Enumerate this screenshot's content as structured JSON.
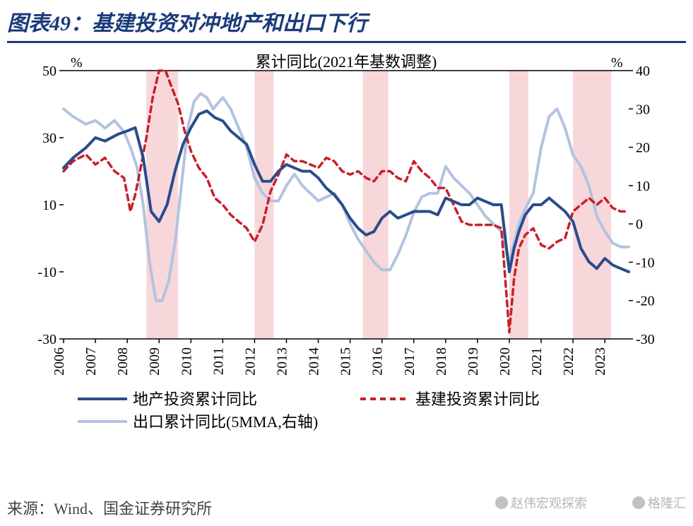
{
  "title": "图表49：基建投资对冲地产和出口下行",
  "subtitle": "累计同比(2021年基数调整)",
  "source": "来源：Wind、国金证券研究所",
  "watermark1": "赵伟宏观探索",
  "watermark2": "格隆汇",
  "chart": {
    "type": "line",
    "background_color": "#ffffff",
    "plot_border_color": "#000000",
    "highlight_band_color": "#f7d7da",
    "grid": false,
    "axis_font_size": 20,
    "title_font_size": 22,
    "legend_font_size": 22,
    "y_left": {
      "unit": "%",
      "min": -30,
      "max": 50,
      "step": 20,
      "ticks": [
        -30,
        -10,
        10,
        30,
        50
      ]
    },
    "y_right": {
      "unit": "%",
      "min": -30,
      "max": 40,
      "step": 10,
      "ticks": [
        -30,
        -20,
        -10,
        0,
        10,
        20,
        30,
        40
      ]
    },
    "x": {
      "labels": [
        "2006",
        "2007",
        "2008",
        "2009",
        "2010",
        "2011",
        "2012",
        "2013",
        "2014",
        "2015",
        "2016",
        "2017",
        "2018",
        "2019",
        "2020",
        "2021",
        "2022",
        "2023"
      ],
      "rotate": 90
    },
    "highlight_bands": [
      {
        "start_idx": 2.6,
        "end_idx": 3.6
      },
      {
        "start_idx": 6.0,
        "end_idx": 6.6
      },
      {
        "start_idx": 9.4,
        "end_idx": 10.2
      },
      {
        "start_idx": 14.0,
        "end_idx": 14.6
      },
      {
        "start_idx": 16.0,
        "end_idx": 17.2
      }
    ],
    "series": [
      {
        "name": "地产投资累计同比",
        "axis": "left",
        "color": "#2b4b8d",
        "width": 4,
        "dash": "",
        "data": [
          [
            0.0,
            21
          ],
          [
            0.3,
            24
          ],
          [
            0.7,
            27
          ],
          [
            1.0,
            30
          ],
          [
            1.3,
            29
          ],
          [
            1.7,
            31
          ],
          [
            2.0,
            32
          ],
          [
            2.25,
            33
          ],
          [
            2.5,
            24
          ],
          [
            2.75,
            8
          ],
          [
            3.0,
            5
          ],
          [
            3.25,
            10
          ],
          [
            3.5,
            20
          ],
          [
            3.75,
            28
          ],
          [
            4.0,
            33
          ],
          [
            4.25,
            37
          ],
          [
            4.5,
            38
          ],
          [
            4.75,
            36
          ],
          [
            5.0,
            35
          ],
          [
            5.25,
            32
          ],
          [
            5.5,
            30
          ],
          [
            5.75,
            28
          ],
          [
            6.0,
            22
          ],
          [
            6.25,
            17
          ],
          [
            6.5,
            17
          ],
          [
            6.75,
            20
          ],
          [
            7.0,
            22
          ],
          [
            7.25,
            21
          ],
          [
            7.5,
            20
          ],
          [
            7.75,
            20
          ],
          [
            8.0,
            18
          ],
          [
            8.25,
            15
          ],
          [
            8.5,
            13
          ],
          [
            8.75,
            10
          ],
          [
            9.0,
            6
          ],
          [
            9.25,
            3
          ],
          [
            9.5,
            1
          ],
          [
            9.75,
            2
          ],
          [
            10.0,
            6
          ],
          [
            10.25,
            8
          ],
          [
            10.5,
            6
          ],
          [
            10.75,
            7
          ],
          [
            11.0,
            8
          ],
          [
            11.25,
            8
          ],
          [
            11.5,
            8
          ],
          [
            11.75,
            7
          ],
          [
            12.0,
            12
          ],
          [
            12.25,
            11
          ],
          [
            12.5,
            10
          ],
          [
            12.75,
            10
          ],
          [
            13.0,
            12
          ],
          [
            13.25,
            11
          ],
          [
            13.5,
            10
          ],
          [
            13.75,
            10
          ],
          [
            14.0,
            -10
          ],
          [
            14.15,
            -3
          ],
          [
            14.3,
            2
          ],
          [
            14.5,
            7
          ],
          [
            14.75,
            10
          ],
          [
            15.0,
            10
          ],
          [
            15.25,
            12
          ],
          [
            15.5,
            10
          ],
          [
            15.75,
            8
          ],
          [
            16.0,
            5
          ],
          [
            16.25,
            -3
          ],
          [
            16.5,
            -7
          ],
          [
            16.75,
            -9
          ],
          [
            17.0,
            -6
          ],
          [
            17.25,
            -8
          ],
          [
            17.5,
            -9
          ],
          [
            17.75,
            -10
          ]
        ]
      },
      {
        "name": "基建投资累计同比",
        "axis": "left",
        "color": "#c8202a",
        "width": 3.5,
        "dash": "8,6",
        "data": [
          [
            0.0,
            20
          ],
          [
            0.3,
            23
          ],
          [
            0.7,
            25
          ],
          [
            1.0,
            22
          ],
          [
            1.3,
            24
          ],
          [
            1.6,
            20
          ],
          [
            1.9,
            18
          ],
          [
            2.1,
            8
          ],
          [
            2.25,
            13
          ],
          [
            2.4,
            20
          ],
          [
            2.6,
            30
          ],
          [
            2.8,
            42
          ],
          [
            3.0,
            50
          ],
          [
            3.2,
            50
          ],
          [
            3.4,
            45
          ],
          [
            3.6,
            40
          ],
          [
            3.8,
            32
          ],
          [
            4.0,
            26
          ],
          [
            4.25,
            21
          ],
          [
            4.5,
            18
          ],
          [
            4.75,
            12
          ],
          [
            5.0,
            10
          ],
          [
            5.25,
            7
          ],
          [
            5.5,
            5
          ],
          [
            5.75,
            3
          ],
          [
            6.0,
            -1
          ],
          [
            6.25,
            4
          ],
          [
            6.5,
            14
          ],
          [
            6.75,
            19
          ],
          [
            7.0,
            25
          ],
          [
            7.25,
            23
          ],
          [
            7.5,
            23
          ],
          [
            7.75,
            22
          ],
          [
            8.0,
            21
          ],
          [
            8.25,
            24
          ],
          [
            8.5,
            23
          ],
          [
            8.75,
            20
          ],
          [
            9.0,
            19
          ],
          [
            9.25,
            20
          ],
          [
            9.5,
            18
          ],
          [
            9.75,
            17
          ],
          [
            10.0,
            20
          ],
          [
            10.25,
            20
          ],
          [
            10.5,
            18
          ],
          [
            10.75,
            17
          ],
          [
            11.0,
            23
          ],
          [
            11.25,
            20
          ],
          [
            11.5,
            18
          ],
          [
            11.75,
            15
          ],
          [
            12.0,
            15
          ],
          [
            12.25,
            10
          ],
          [
            12.5,
            5
          ],
          [
            12.75,
            4
          ],
          [
            13.0,
            4
          ],
          [
            13.25,
            4
          ],
          [
            13.5,
            4
          ],
          [
            13.75,
            3
          ],
          [
            14.0,
            -28
          ],
          [
            14.15,
            -12
          ],
          [
            14.3,
            -3
          ],
          [
            14.5,
            1
          ],
          [
            14.75,
            3
          ],
          [
            15.0,
            -2
          ],
          [
            15.25,
            -3
          ],
          [
            15.5,
            -1
          ],
          [
            15.75,
            0
          ],
          [
            16.0,
            8
          ],
          [
            16.25,
            10
          ],
          [
            16.5,
            12
          ],
          [
            16.75,
            10
          ],
          [
            17.0,
            12
          ],
          [
            17.25,
            9
          ],
          [
            17.5,
            8
          ],
          [
            17.75,
            8
          ]
        ]
      },
      {
        "name": "出口累计同比(5MMA,右轴)",
        "axis": "right",
        "color": "#b3c3e0",
        "width": 4,
        "dash": "",
        "data": [
          [
            0.0,
            30
          ],
          [
            0.3,
            28
          ],
          [
            0.7,
            26
          ],
          [
            1.0,
            27
          ],
          [
            1.3,
            25
          ],
          [
            1.6,
            27
          ],
          [
            1.9,
            24
          ],
          [
            2.1,
            20
          ],
          [
            2.3,
            15
          ],
          [
            2.5,
            5
          ],
          [
            2.7,
            -10
          ],
          [
            2.9,
            -20
          ],
          [
            3.1,
            -20
          ],
          [
            3.3,
            -15
          ],
          [
            3.5,
            -5
          ],
          [
            3.7,
            10
          ],
          [
            3.9,
            25
          ],
          [
            4.1,
            32
          ],
          [
            4.3,
            34
          ],
          [
            4.5,
            33
          ],
          [
            4.7,
            30
          ],
          [
            5.0,
            33
          ],
          [
            5.25,
            30
          ],
          [
            5.5,
            25
          ],
          [
            5.75,
            20
          ],
          [
            6.0,
            12
          ],
          [
            6.25,
            8
          ],
          [
            6.5,
            6
          ],
          [
            6.75,
            6
          ],
          [
            7.0,
            10
          ],
          [
            7.25,
            13
          ],
          [
            7.5,
            10
          ],
          [
            7.75,
            8
          ],
          [
            8.0,
            6
          ],
          [
            8.25,
            7
          ],
          [
            8.5,
            8
          ],
          [
            8.75,
            5
          ],
          [
            9.0,
            0
          ],
          [
            9.25,
            -4
          ],
          [
            9.5,
            -7
          ],
          [
            9.75,
            -10
          ],
          [
            10.0,
            -12
          ],
          [
            10.25,
            -12
          ],
          [
            10.5,
            -8
          ],
          [
            10.75,
            -3
          ],
          [
            11.0,
            3
          ],
          [
            11.25,
            7
          ],
          [
            11.5,
            8
          ],
          [
            11.75,
            8
          ],
          [
            12.0,
            15
          ],
          [
            12.25,
            12
          ],
          [
            12.5,
            10
          ],
          [
            12.75,
            8
          ],
          [
            13.0,
            5
          ],
          [
            13.25,
            2
          ],
          [
            13.5,
            0
          ],
          [
            13.75,
            -2
          ],
          [
            14.0,
            -10
          ],
          [
            14.15,
            -5
          ],
          [
            14.3,
            0
          ],
          [
            14.5,
            4
          ],
          [
            14.75,
            8
          ],
          [
            15.0,
            20
          ],
          [
            15.25,
            28
          ],
          [
            15.5,
            30
          ],
          [
            15.75,
            25
          ],
          [
            16.0,
            18
          ],
          [
            16.25,
            15
          ],
          [
            16.5,
            10
          ],
          [
            16.75,
            2
          ],
          [
            17.0,
            -2
          ],
          [
            17.25,
            -5
          ],
          [
            17.5,
            -6
          ],
          [
            17.75,
            -6
          ]
        ]
      }
    ],
    "legend": [
      {
        "label": "地产投资累计同比",
        "color": "#2b4b8d",
        "dash": false
      },
      {
        "label": "基建投资累计同比",
        "color": "#c8202a",
        "dash": true
      },
      {
        "label": "出口累计同比(5MMA,右轴)",
        "color": "#b3c3e0",
        "dash": false
      }
    ]
  }
}
